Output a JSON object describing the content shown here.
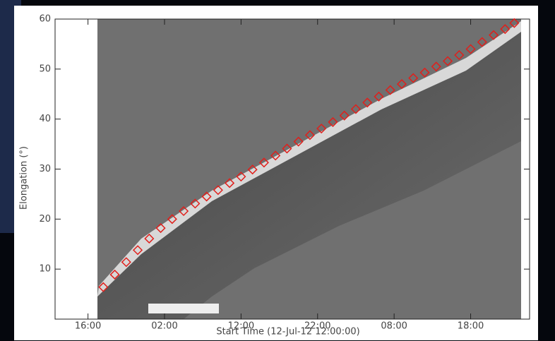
{
  "chart_data": {
    "type": "scatter",
    "xlabel": "Start Time (12-Jul-12 12:00:00)",
    "ylabel": "Elongation (°)",
    "xlim": [
      -0.3,
      61.7
    ],
    "ylim": [
      0,
      60
    ],
    "xticks": [
      {
        "value": 4,
        "label": "16:00"
      },
      {
        "value": 14,
        "label": "02:00"
      },
      {
        "value": 24,
        "label": "12:00"
      },
      {
        "value": 34,
        "label": "22:00"
      },
      {
        "value": 44,
        "label": "08:00"
      },
      {
        "value": 54,
        "label": "18:00"
      }
    ],
    "yticks": [
      10,
      20,
      30,
      40,
      50,
      60
    ],
    "series": [
      {
        "color": "#e0201c",
        "x": [
          6,
          7.5,
          9,
          10.5,
          12,
          13.5,
          15,
          16.5,
          18,
          19.5,
          21,
          22.5,
          24,
          25.5,
          27,
          28.5,
          30,
          31.5,
          33,
          34.5,
          36,
          37.5,
          39,
          40.5,
          42,
          43.5,
          45,
          46.5,
          48,
          49.5,
          51,
          52.5,
          54,
          55.5,
          57,
          58.5,
          59.7
        ],
        "values": [
          6.4,
          8.9,
          11.4,
          13.8,
          16.1,
          18.2,
          20.0,
          21.6,
          23.1,
          24.5,
          25.8,
          27.2,
          28.5,
          29.9,
          31.3,
          32.7,
          34.1,
          35.5,
          36.8,
          38.1,
          39.4,
          40.7,
          42.0,
          43.3,
          44.5,
          45.8,
          47.0,
          48.2,
          49.3,
          50.5,
          51.6,
          52.8,
          54.0,
          55.4,
          56.8,
          58.0,
          59.2
        ]
      }
    ]
  }
}
